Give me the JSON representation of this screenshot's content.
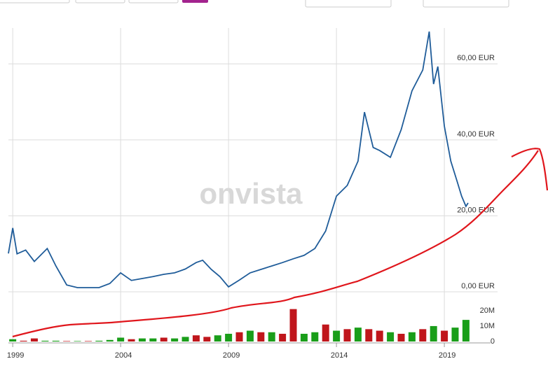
{
  "chart_data": {
    "type": "line",
    "watermark": "onvista",
    "x": [
      1998.8,
      1999.0,
      1999.2,
      1999.6,
      2000.0,
      2000.6,
      2001.0,
      2001.5,
      2002.0,
      2003.0,
      2003.5,
      2004.0,
      2004.5,
      2005.0,
      2005.5,
      2006.0,
      2006.5,
      2007.0,
      2007.5,
      2007.8,
      2008.2,
      2008.6,
      2009.0,
      2009.5,
      2010.0,
      2010.5,
      2011.0,
      2011.5,
      2012.0,
      2012.5,
      2013.0,
      2013.5,
      2014.0,
      2014.5,
      2015.0,
      2015.3,
      2015.7,
      2016.0,
      2016.5,
      2017.0,
      2017.5,
      2018.0,
      2018.3,
      2018.5,
      2018.7,
      2019.0,
      2019.3,
      2019.6,
      2019.8,
      2020.0,
      2020.1
    ],
    "series": [
      {
        "color": "#1f5c99",
        "values": [
          10.1,
          16.8,
          10,
          11,
          8,
          11.4,
          6.8,
          1.8,
          1.1,
          1.1,
          2.2,
          5,
          3,
          3.5,
          4,
          4.6,
          5,
          6,
          7.7,
          8.3,
          5.9,
          4,
          1.3,
          3.1,
          5,
          5.9,
          6.8,
          7.7,
          8.7,
          9.6,
          11.4,
          16,
          25.2,
          28,
          34.4,
          47.3,
          38,
          37.2,
          35.4,
          42.7,
          52.9,
          58.4,
          68.5,
          54.7,
          59.3,
          43.6,
          34.4,
          28.9,
          25.2,
          22.5,
          23.4
        ]
      }
    ],
    "xlim": [
      1998.8,
      2021.4
    ],
    "xticks": [
      1999,
      2004,
      2009,
      2014,
      2019
    ],
    "ylim": [
      0,
      70
    ],
    "yticks": [
      {
        "value": 0,
        "label": "0,00 EUR"
      },
      {
        "value": 20,
        "label": "20,00 EUR"
      },
      {
        "value": 40,
        "label": "40,00 EUR"
      },
      {
        "value": 60,
        "label": "60,00 EUR"
      }
    ],
    "grid": true,
    "volume": {
      "type": "bar",
      "x": [
        1999.0,
        1999.5,
        2000.0,
        2000.5,
        2001.0,
        2001.5,
        2002.0,
        2002.5,
        2003.0,
        2003.5,
        2004.0,
        2004.5,
        2005.0,
        2005.5,
        2006.0,
        2006.5,
        2007.0,
        2007.5,
        2008.0,
        2008.5,
        2009.0,
        2009.5,
        2010.0,
        2010.5,
        2011.0,
        2011.5,
        2012.0,
        2012.5,
        2013.0,
        2013.5,
        2014.0,
        2014.5,
        2015.0,
        2015.5,
        2016.0,
        2016.5,
        2017.0,
        2017.5,
        2018.0,
        2018.5,
        2019.0,
        2019.5,
        2020.0
      ],
      "values": [
        1500000,
        500000,
        2000000,
        500000,
        500000,
        300000,
        300000,
        300000,
        500000,
        1000000,
        2500000,
        1500000,
        2000000,
        2000000,
        2500000,
        2000000,
        3000000,
        4000000,
        3000000,
        4000000,
        5000000,
        6000000,
        7000000,
        6000000,
        6000000,
        5000000,
        21000000,
        5000000,
        6000000,
        11000000,
        7000000,
        8000000,
        9000000,
        8000000,
        7000000,
        6000000,
        5000000,
        6000000,
        8000000,
        10000000,
        7000000,
        9000000,
        14000000
      ],
      "colors": [
        "#1a9e1a",
        "#c0161c",
        "#c0161c",
        "#1a9e1a",
        "#1a9e1a",
        "#c0161c",
        "#1a9e1a",
        "#c0161c",
        "#1a9e1a",
        "#1a9e1a",
        "#1a9e1a",
        "#c0161c",
        "#1a9e1a",
        "#1a9e1a",
        "#c0161c",
        "#1a9e1a",
        "#1a9e1a",
        "#c0161c",
        "#c0161c",
        "#1a9e1a",
        "#1a9e1a",
        "#c0161c",
        "#1a9e1a",
        "#c0161c",
        "#1a9e1a",
        "#c0161c",
        "#c0161c",
        "#1a9e1a",
        "#1a9e1a",
        "#c0161c",
        "#1a9e1a",
        "#c0161c",
        "#1a9e1a",
        "#c0161c",
        "#c0161c",
        "#1a9e1a",
        "#c0161c",
        "#1a9e1a",
        "#c0161c",
        "#1a9e1a",
        "#c0161c",
        "#1a9e1a",
        "#1a9e1a"
      ],
      "ylim": [
        0,
        29000000
      ],
      "yticks": [
        0,
        {
          "value": 10000000,
          "label": "10M"
        },
        {
          "value": 20000000,
          "label": "20M"
        }
      ]
    }
  }
}
